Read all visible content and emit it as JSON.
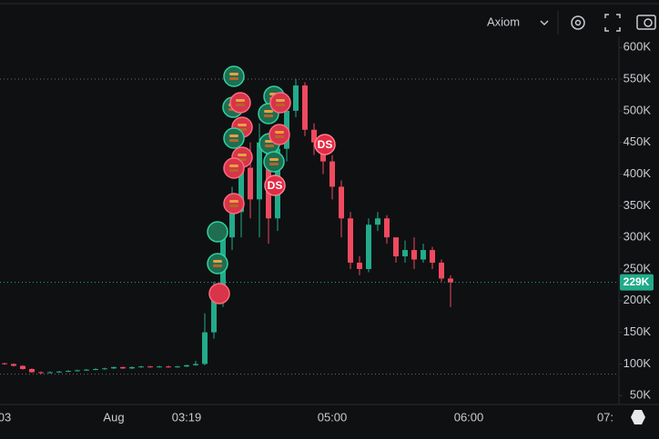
{
  "chart_data": {
    "type": "candlestick",
    "toolbar": {
      "source": "Axiom"
    },
    "categories": [
      "03",
      null,
      null,
      null,
      null,
      null,
      null,
      null,
      null,
      null,
      null,
      null,
      "Aug",
      null,
      null,
      null,
      null,
      null,
      null,
      null,
      "03:19",
      null,
      null,
      null,
      null,
      null,
      null,
      null,
      null,
      null,
      null,
      null,
      null,
      null,
      null,
      null,
      "05:00",
      null,
      null,
      null,
      null,
      null,
      null,
      null,
      null,
      null,
      null,
      null,
      null,
      null,
      null,
      "06:00",
      null,
      null,
      null,
      null,
      null,
      null,
      null,
      null,
      null,
      null,
      null,
      null,
      null,
      null,
      "07:",
      null
    ],
    "open": [
      101,
      100,
      97,
      92,
      87,
      86,
      87,
      88,
      89,
      90,
      91,
      92,
      93,
      95,
      93,
      95,
      96,
      95,
      96,
      95,
      96,
      98,
      100,
      150,
      200,
      300,
      340,
      410,
      360,
      450,
      330,
      440,
      500,
      540,
      470,
      450,
      420,
      380,
      330,
      260,
      250,
      320,
      330,
      300,
      270,
      280,
      265,
      280,
      260,
      235,
      null,
      null,
      null,
      null,
      null,
      null,
      null,
      null,
      null,
      null,
      null,
      null,
      null,
      null,
      null,
      null,
      null,
      null
    ],
    "high": [
      102,
      101,
      98,
      93,
      88,
      88,
      89,
      90,
      91,
      92,
      93,
      94,
      96,
      96,
      96,
      97,
      97,
      97,
      97,
      97,
      99,
      105,
      180,
      230,
      320,
      380,
      440,
      450,
      480,
      460,
      470,
      520,
      550,
      545,
      480,
      460,
      430,
      390,
      340,
      270,
      330,
      340,
      335,
      300,
      295,
      300,
      290,
      285,
      265,
      240,
      null,
      null,
      null,
      null,
      null,
      null,
      null,
      null,
      null,
      null,
      null,
      null,
      null,
      null,
      null,
      null,
      null,
      null
    ],
    "low": [
      99,
      96,
      91,
      86,
      84,
      85,
      86,
      87,
      88,
      89,
      90,
      91,
      92,
      92,
      92,
      94,
      94,
      94,
      94,
      94,
      95,
      97,
      98,
      140,
      190,
      280,
      300,
      330,
      300,
      290,
      310,
      420,
      490,
      460,
      430,
      400,
      360,
      300,
      250,
      240,
      245,
      310,
      290,
      260,
      260,
      250,
      260,
      250,
      230,
      190,
      null,
      null,
      null,
      null,
      null,
      null,
      null,
      null,
      null,
      null,
      null,
      null,
      null,
      null,
      null,
      null,
      null,
      null
    ],
    "close": [
      100,
      97,
      92,
      87,
      86,
      87,
      88,
      89,
      90,
      91,
      92,
      93,
      95,
      93,
      95,
      96,
      95,
      96,
      95,
      96,
      98,
      100,
      150,
      200,
      300,
      340,
      410,
      360,
      450,
      330,
      440,
      500,
      540,
      470,
      450,
      420,
      380,
      330,
      260,
      250,
      320,
      330,
      300,
      270,
      280,
      265,
      280,
      260,
      235,
      229,
      null,
      null,
      null,
      null,
      null,
      null,
      null,
      null,
      null,
      null,
      null,
      null,
      null,
      null,
      null,
      null,
      null,
      null
    ],
    "up_color": "#22ab8a",
    "down_color": "#ef4a5f",
    "last_price": {
      "value": 229,
      "label": "229K"
    },
    "annotations": [
      "DS",
      "DS"
    ],
    "ylim": [
      36,
      675
    ],
    "yticks": [
      {
        "value": 600,
        "label": "600K"
      },
      {
        "value": 550,
        "label": "550K"
      },
      {
        "value": 500,
        "label": "500K"
      },
      {
        "value": 450,
        "label": "450K"
      },
      {
        "value": 400,
        "label": "400K"
      },
      {
        "value": 350,
        "label": "350K"
      },
      {
        "value": 300,
        "label": "300K"
      },
      {
        "value": 250,
        "label": "250K"
      },
      {
        "value": 200,
        "label": "200K"
      },
      {
        "value": 150,
        "label": "150K"
      },
      {
        "value": 100,
        "label": "100K"
      },
      {
        "value": 50,
        "label": "50K"
      }
    ],
    "grid": false
  }
}
